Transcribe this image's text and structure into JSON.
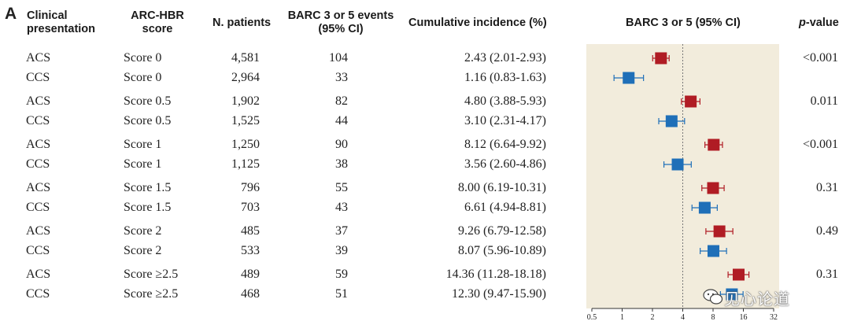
{
  "panel_label": "A",
  "headers": {
    "clinical_line1": "Clinical",
    "clinical_line2": "presentation",
    "arc_line1": "ARC-HBR",
    "arc_line2": "score",
    "patients": "N. patients",
    "events_line1": "BARC 3 or 5 events",
    "events_line2": "(95% CI)",
    "incidence": "Cumulative incidence (%)",
    "forest": "BARC 3 or 5 (95% CI)",
    "pvalue_italic": "p",
    "pvalue_rest": "-value"
  },
  "rows": [
    {
      "presentation": "ACS",
      "score": "Score 0",
      "patients": "4,581",
      "events": "104",
      "incidence": "2.43 (2.01-2.93)"
    },
    {
      "presentation": "CCS",
      "score": "Score 0",
      "patients": "2,964",
      "events": "33",
      "incidence": "1.16 (0.83-1.63)"
    },
    {
      "presentation": "ACS",
      "score": "Score 0.5",
      "patients": "1,902",
      "events": "82",
      "incidence": "4.80 (3.88-5.93)"
    },
    {
      "presentation": "CCS",
      "score": "Score 0.5",
      "patients": "1,525",
      "events": "44",
      "incidence": "3.10 (2.31-4.17)"
    },
    {
      "presentation": "ACS",
      "score": "Score 1",
      "patients": "1,250",
      "events": "90",
      "incidence": "8.12 (6.64-9.92)"
    },
    {
      "presentation": "CCS",
      "score": "Score 1",
      "patients": "1,125",
      "events": "38",
      "incidence": "3.56 (2.60-4.86)"
    },
    {
      "presentation": "ACS",
      "score": "Score 1.5",
      "patients": "796",
      "events": "55",
      "incidence": "8.00 (6.19-10.31)"
    },
    {
      "presentation": "CCS",
      "score": "Score 1.5",
      "patients": "703",
      "events": "43",
      "incidence": "6.61 (4.94-8.81)"
    },
    {
      "presentation": "ACS",
      "score": "Score 2",
      "patients": "485",
      "events": "37",
      "incidence": "9.26 (6.79-12.58)"
    },
    {
      "presentation": "CCS",
      "score": "Score 2",
      "patients": "533",
      "events": "39",
      "incidence": "8.07 (5.96-10.89)"
    },
    {
      "presentation": "ACS",
      "score": "Score ≥2.5",
      "patients": "489",
      "events": "59",
      "incidence": "14.36 (11.28-18.18)"
    },
    {
      "presentation": "CCS",
      "score": "Score ≥2.5",
      "patients": "468",
      "events": "51",
      "incidence": "12.30 (9.47-15.90)"
    }
  ],
  "pvalues": [
    "<0.001",
    "0.011",
    "<0.001",
    "0.31",
    "0.49",
    "0.31"
  ],
  "watermark": "见心论道",
  "colors": {
    "acs": "#b01c24",
    "ccs": "#1f6fb8",
    "panel_bg": "#f2ecdc",
    "reference_line": "#777777"
  },
  "chart_data": {
    "type": "forest",
    "x_scale": "log2",
    "xlim": [
      0.5,
      32
    ],
    "ticks": [
      0.5,
      1,
      2,
      4,
      8,
      16,
      32
    ],
    "tick_labels": [
      "0.5",
      "1",
      "2",
      "4",
      "8",
      "16",
      "32"
    ],
    "reference_value": 4,
    "series": [
      {
        "name": "ACS",
        "points": [
          {
            "est": 2.43,
            "lo": 2.01,
            "hi": 2.93
          },
          {
            "est": 4.8,
            "lo": 3.88,
            "hi": 5.93
          },
          {
            "est": 8.12,
            "lo": 6.64,
            "hi": 9.92
          },
          {
            "est": 8.0,
            "lo": 6.19,
            "hi": 10.31
          },
          {
            "est": 9.26,
            "lo": 6.79,
            "hi": 12.58
          },
          {
            "est": 14.36,
            "lo": 11.28,
            "hi": 18.18
          }
        ]
      },
      {
        "name": "CCS",
        "points": [
          {
            "est": 1.16,
            "lo": 0.83,
            "hi": 1.63
          },
          {
            "est": 3.1,
            "lo": 2.31,
            "hi": 4.17
          },
          {
            "est": 3.56,
            "lo": 2.6,
            "hi": 4.86
          },
          {
            "est": 6.61,
            "lo": 4.94,
            "hi": 8.81
          },
          {
            "est": 8.07,
            "lo": 5.96,
            "hi": 10.89
          },
          {
            "est": 12.3,
            "lo": 9.47,
            "hi": 15.9
          }
        ]
      }
    ]
  }
}
